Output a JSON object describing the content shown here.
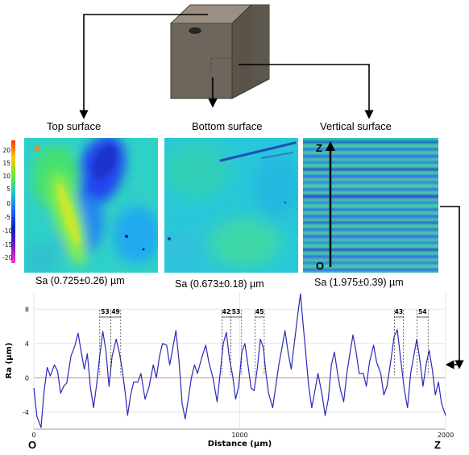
{
  "panels": [
    {
      "title": "Top surface",
      "sa": "Sa (0.725±0.26) µm"
    },
    {
      "title": "Bottom surface",
      "sa": "Sa (0.673±0.18) µm"
    },
    {
      "title": "Vertical surface",
      "sa": "Sa (1.975±0.39) µm"
    }
  ],
  "vertical_axis": {
    "z_label": "Z",
    "o_label": "O"
  },
  "color_scale": {
    "ticks": [
      "20",
      "15",
      "10",
      "5",
      "0",
      "-5",
      "-10",
      "-15",
      "-20"
    ],
    "colors": [
      "#ff3000",
      "#ffcc00",
      "#66ee33",
      "#11cccc",
      "#2266ff",
      "#0022cc",
      "#7711cc",
      "#ff33cc"
    ]
  },
  "chart_data": {
    "type": "line",
    "xlabel": "Distance (µm)",
    "ylabel": "Ra (µm)",
    "xlim": [
      0,
      2000
    ],
    "ylim": [
      -6,
      10
    ],
    "x_ticks": [
      "0",
      "1000",
      "2000"
    ],
    "y_ticks": [
      "8",
      "4",
      "0",
      "-4"
    ],
    "x_start_label": "O",
    "x_end_label": "Z",
    "series": [
      {
        "color": "#2a2ab8",
        "points": [
          [
            0,
            -1.2
          ],
          [
            15,
            -4.5
          ],
          [
            35,
            -5.8
          ],
          [
            50,
            -1.5
          ],
          [
            65,
            1.2
          ],
          [
            80,
            0.2
          ],
          [
            100,
            1.5
          ],
          [
            115,
            0.8
          ],
          [
            130,
            -1.8
          ],
          [
            145,
            -1.0
          ],
          [
            160,
            -0.6
          ],
          [
            180,
            2.5
          ],
          [
            200,
            3.8
          ],
          [
            215,
            5.2
          ],
          [
            230,
            3.0
          ],
          [
            245,
            1.0
          ],
          [
            260,
            2.8
          ],
          [
            275,
            -1.2
          ],
          [
            290,
            -3.5
          ],
          [
            305,
            -0.8
          ],
          [
            320,
            2.6
          ],
          [
            335,
            5.4
          ],
          [
            350,
            3.2
          ],
          [
            365,
            -1.0
          ],
          [
            380,
            2.5
          ],
          [
            400,
            4.5
          ],
          [
            415,
            3.0
          ],
          [
            430,
            0.8
          ],
          [
            445,
            -2.0
          ],
          [
            455,
            -4.4
          ],
          [
            470,
            -2.0
          ],
          [
            485,
            -0.5
          ],
          [
            505,
            -0.5
          ],
          [
            520,
            0.5
          ],
          [
            540,
            -2.5
          ],
          [
            560,
            -1.0
          ],
          [
            580,
            1.5
          ],
          [
            595,
            0.0
          ],
          [
            610,
            2.5
          ],
          [
            625,
            4.0
          ],
          [
            645,
            3.8
          ],
          [
            660,
            1.5
          ],
          [
            675,
            3.5
          ],
          [
            690,
            5.5
          ],
          [
            705,
            2.0
          ],
          [
            720,
            -3.0
          ],
          [
            735,
            -4.8
          ],
          [
            750,
            -2.5
          ],
          [
            765,
            0.0
          ],
          [
            780,
            1.5
          ],
          [
            795,
            0.5
          ],
          [
            815,
            2.3
          ],
          [
            835,
            3.8
          ],
          [
            850,
            1.8
          ],
          [
            870,
            0.0
          ],
          [
            890,
            -2.8
          ],
          [
            905,
            0.5
          ],
          [
            920,
            4.0
          ],
          [
            935,
            5.3
          ],
          [
            950,
            2.2
          ],
          [
            965,
            0.3
          ],
          [
            980,
            -2.5
          ],
          [
            995,
            -1.0
          ],
          [
            1010,
            3.0
          ],
          [
            1025,
            4.0
          ],
          [
            1040,
            1.5
          ],
          [
            1055,
            -1.2
          ],
          [
            1070,
            -1.5
          ],
          [
            1085,
            1.0
          ],
          [
            1100,
            4.5
          ],
          [
            1115,
            3.5
          ],
          [
            1125,
            1.0
          ],
          [
            1140,
            -1.8
          ],
          [
            1160,
            -3.5
          ],
          [
            1175,
            -1.0
          ],
          [
            1190,
            1.5
          ],
          [
            1205,
            3.5
          ],
          [
            1220,
            5.5
          ],
          [
            1235,
            3.0
          ],
          [
            1250,
            1.0
          ],
          [
            1265,
            4.0
          ],
          [
            1280,
            7.0
          ],
          [
            1295,
            9.8
          ],
          [
            1305,
            7.0
          ],
          [
            1320,
            3.0
          ],
          [
            1335,
            -1.0
          ],
          [
            1350,
            -3.5
          ],
          [
            1365,
            -1.5
          ],
          [
            1380,
            0.5
          ],
          [
            1400,
            -2.0
          ],
          [
            1415,
            -4.4
          ],
          [
            1430,
            -2.5
          ],
          [
            1445,
            1.5
          ],
          [
            1460,
            3.0
          ],
          [
            1475,
            0.5
          ],
          [
            1490,
            -1.5
          ],
          [
            1505,
            -2.8
          ],
          [
            1520,
            0.5
          ],
          [
            1535,
            2.8
          ],
          [
            1550,
            5.0
          ],
          [
            1565,
            3.0
          ],
          [
            1580,
            0.5
          ],
          [
            1600,
            0.5
          ],
          [
            1615,
            -1.0
          ],
          [
            1630,
            1.8
          ],
          [
            1650,
            3.8
          ],
          [
            1665,
            1.8
          ],
          [
            1685,
            0.5
          ],
          [
            1700,
            -2.0
          ],
          [
            1715,
            -1.0
          ],
          [
            1735,
            2.2
          ],
          [
            1750,
            4.8
          ],
          [
            1765,
            5.6
          ],
          [
            1780,
            2.5
          ],
          [
            1800,
            -1.5
          ],
          [
            1815,
            -3.5
          ],
          [
            1830,
            0.5
          ],
          [
            1845,
            2.5
          ],
          [
            1860,
            4.5
          ],
          [
            1875,
            2.0
          ],
          [
            1890,
            -1.0
          ],
          [
            1905,
            1.5
          ],
          [
            1920,
            3.2
          ],
          [
            1935,
            1.0
          ],
          [
            1950,
            -2.0
          ],
          [
            1965,
            -0.5
          ],
          [
            1980,
            -3.0
          ],
          [
            2000,
            -4.4
          ]
        ]
      }
    ],
    "spacing_annotations": [
      {
        "x1": 320,
        "x2": 373,
        "label": "53"
      },
      {
        "x1": 373,
        "x2": 422,
        "label": "49"
      },
      {
        "x1": 914,
        "x2": 956,
        "label": "42"
      },
      {
        "x1": 956,
        "x2": 1009,
        "label": "53"
      },
      {
        "x1": 1074,
        "x2": 1119,
        "label": "45"
      },
      {
        "x1": 1751,
        "x2": 1794,
        "label": "43"
      },
      {
        "x1": 1861,
        "x2": 1915,
        "label": "54"
      }
    ]
  }
}
